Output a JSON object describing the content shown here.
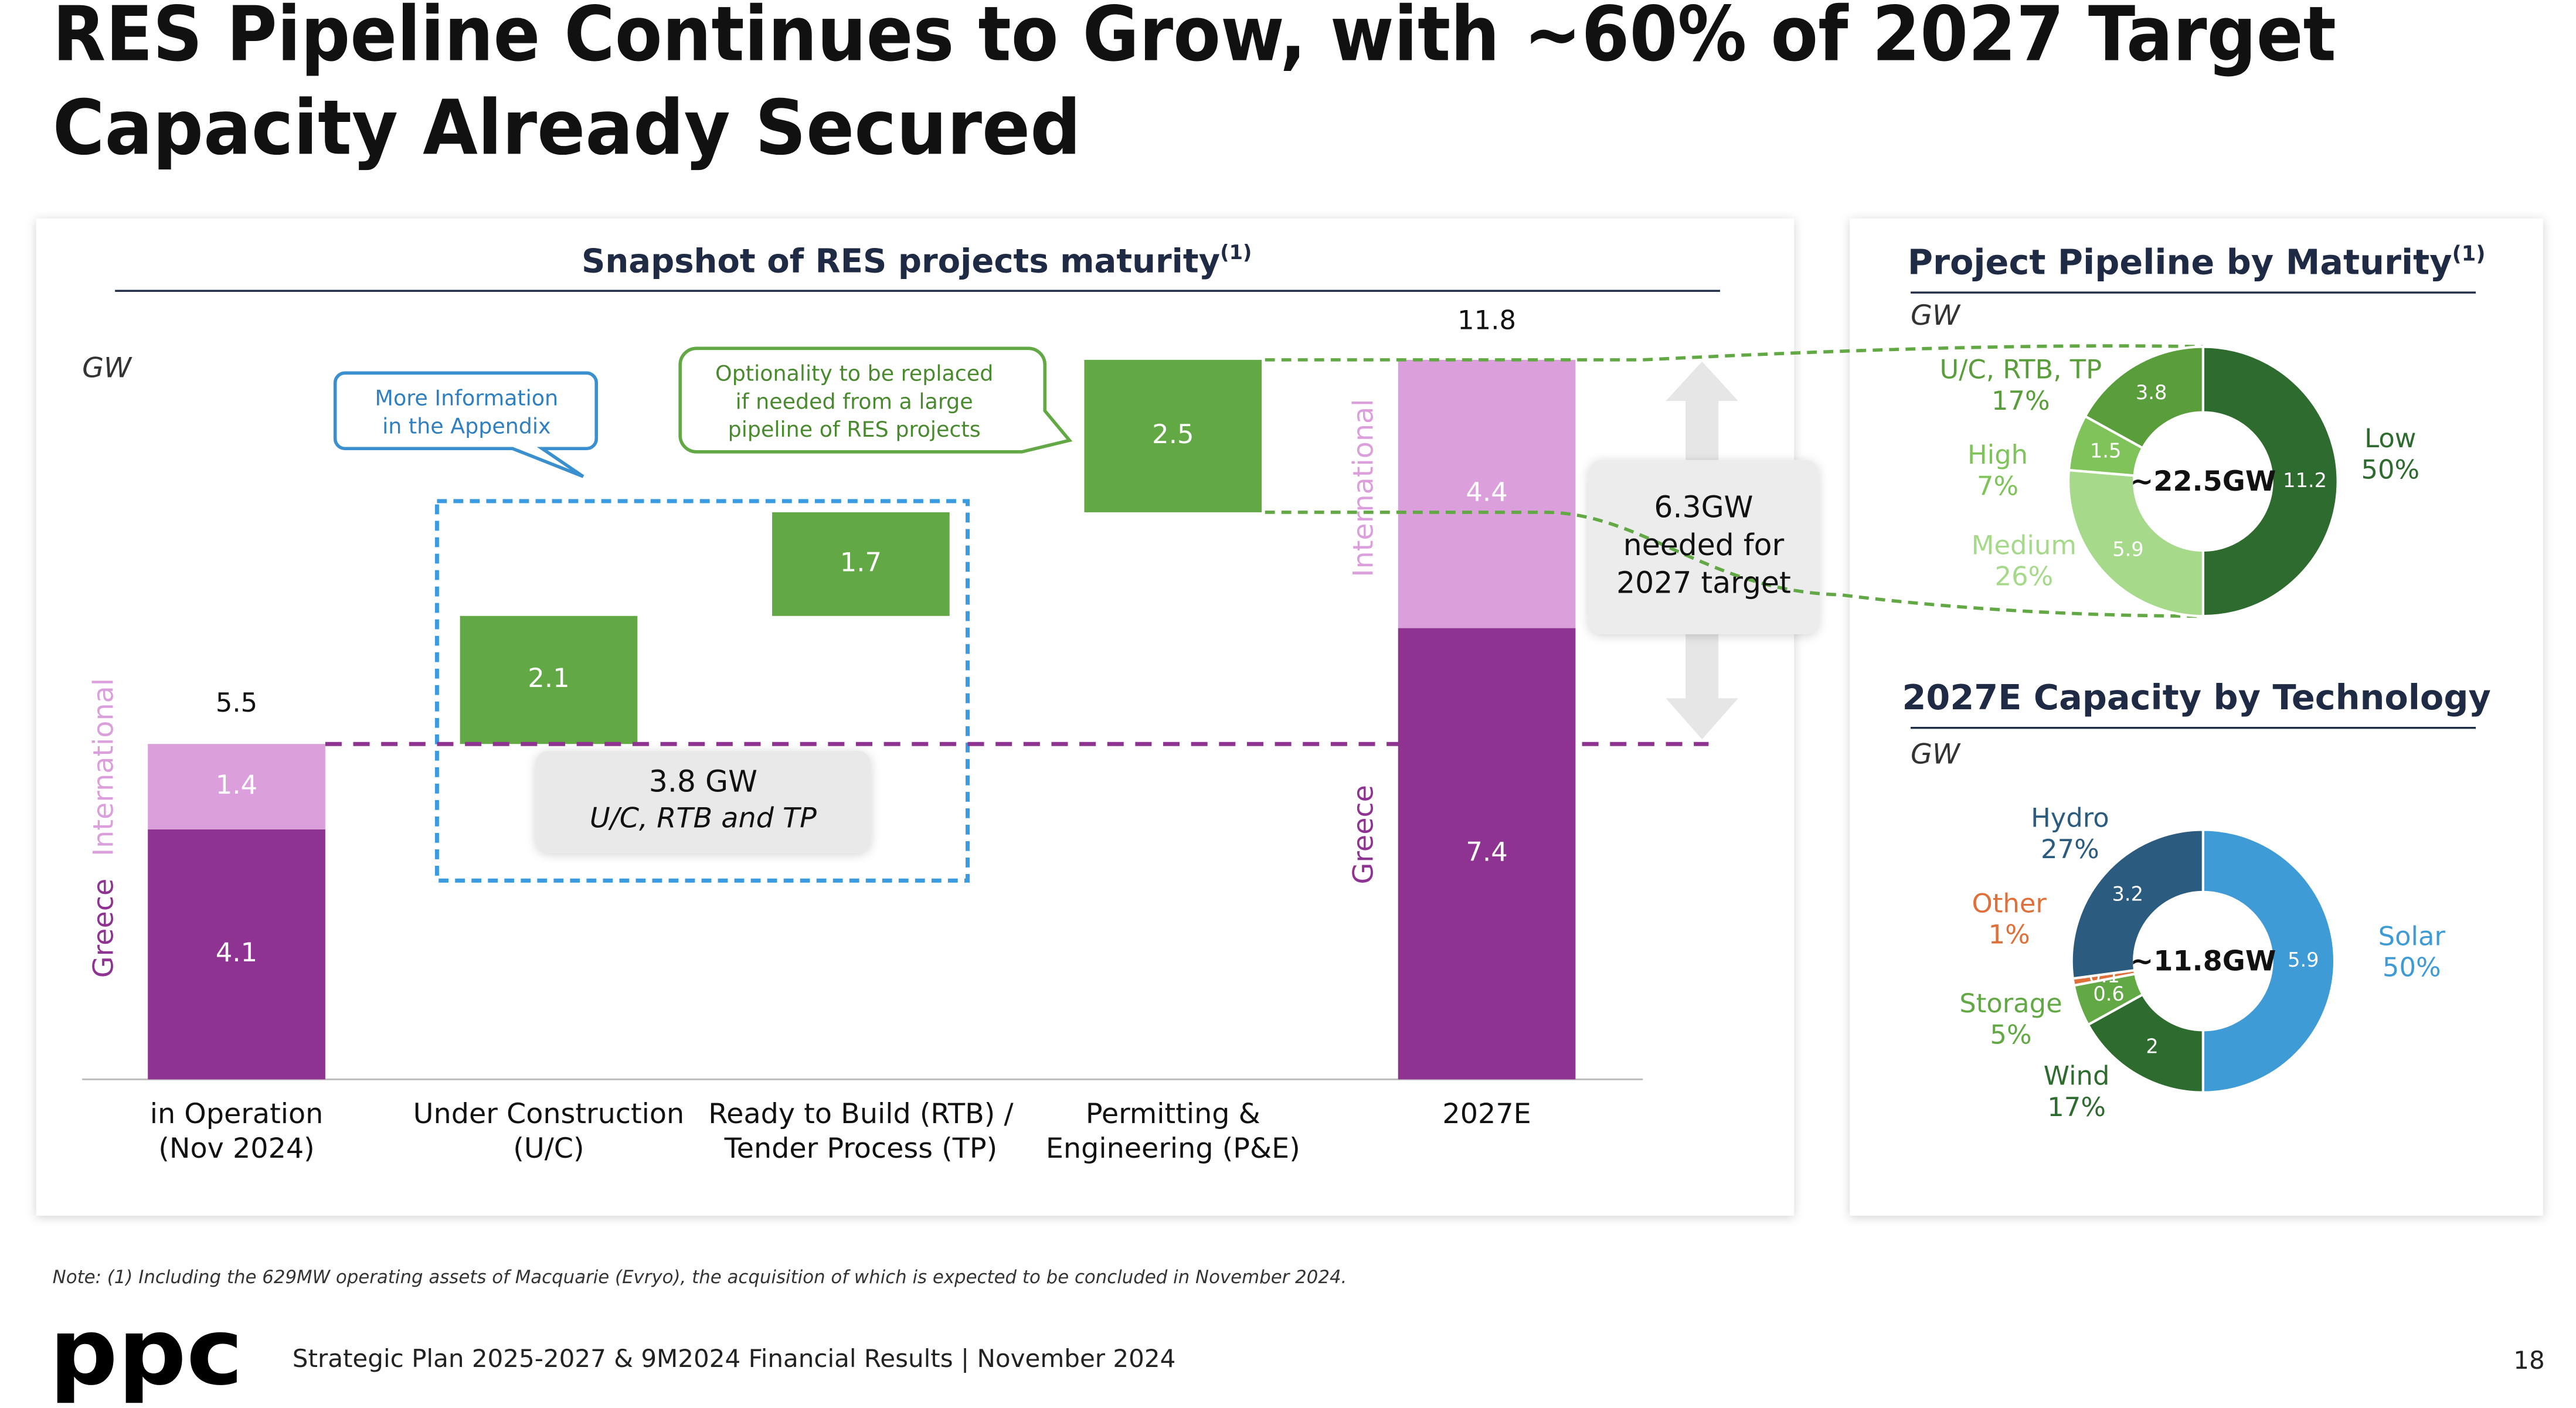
{
  "title": [
    "RES Pipeline Continues to Grow, with ~60% of 2027 Target",
    "Capacity Already Secured"
  ],
  "note": "Note: (1) Including the 629MW operating assets of Macquarie (Evryo), the acquisition of which is expected to be concluded in November 2024.",
  "logo": "ppc",
  "footer": "Strategic Plan 2025-2027 & 9M2024 Financial Results | November 2024",
  "page_number": "18",
  "chart_data": [
    {
      "type": "waterfall",
      "title": "Snapshot of RES projects maturity",
      "title_note": "(1)",
      "unit": "GW",
      "categories": [
        [
          "in Operation",
          "(Nov 2024)"
        ],
        [
          "Under Construction",
          "(U/C)"
        ],
        [
          "Ready to Build (RTB) /",
          "Tender Process (TP)"
        ],
        [
          "Permitting &",
          "Engineering (P&E)"
        ],
        [
          "2027E"
        ]
      ],
      "series": [
        {
          "name": "Greece",
          "color": "#8e3391",
          "values": [
            4.1,
            null,
            null,
            null,
            7.4
          ]
        },
        {
          "name": "International",
          "color": "#dba0db",
          "values": [
            1.4,
            null,
            null,
            null,
            4.4
          ]
        }
      ],
      "steps": {
        "color": "#62a845",
        "values": [
          null,
          2.1,
          1.7,
          2.5,
          null
        ]
      },
      "totals": [
        5.5,
        null,
        null,
        null,
        11.8
      ],
      "ylim": [
        0,
        12.5
      ],
      "appendix_note": [
        "More Information",
        "in the Appendix"
      ],
      "optionality_note": [
        "Optionality to be replaced",
        "if needed from a large",
        "pipeline of RES projects"
      ],
      "secured_note": [
        "3.8 GW",
        "U/C, RTB and TP"
      ],
      "target_note": [
        "6.3GW",
        "needed for",
        "2027 target"
      ]
    },
    {
      "type": "donut",
      "title": "Project Pipeline by Maturity",
      "title_note": "(1)",
      "unit": "GW",
      "center_label": "~22.5GW",
      "categories": [
        "Low",
        "Medium",
        "High",
        "U/C, RTB, TP"
      ],
      "values": [
        11.2,
        5.9,
        1.5,
        3.8
      ],
      "shares": [
        "50%",
        "26%",
        "7%",
        "17%"
      ],
      "colors": [
        "#2e6b2e",
        "#a6d98a",
        "#7fc35a",
        "#5a9e3c"
      ]
    },
    {
      "type": "donut",
      "title": "2027E Capacity by Technology",
      "unit": "GW",
      "center_label": "~11.8GW",
      "categories": [
        "Solar",
        "Wind",
        "Storage",
        "Other",
        "Hydro"
      ],
      "values": [
        5.9,
        2.0,
        0.6,
        0.1,
        3.2
      ],
      "shares": [
        "50%",
        "17%",
        "5%",
        "1%",
        "27%"
      ],
      "colors": [
        "#3f9bd6",
        "#2e6b2e",
        "#62a845",
        "#e0703a",
        "#2b5b7e"
      ]
    }
  ]
}
